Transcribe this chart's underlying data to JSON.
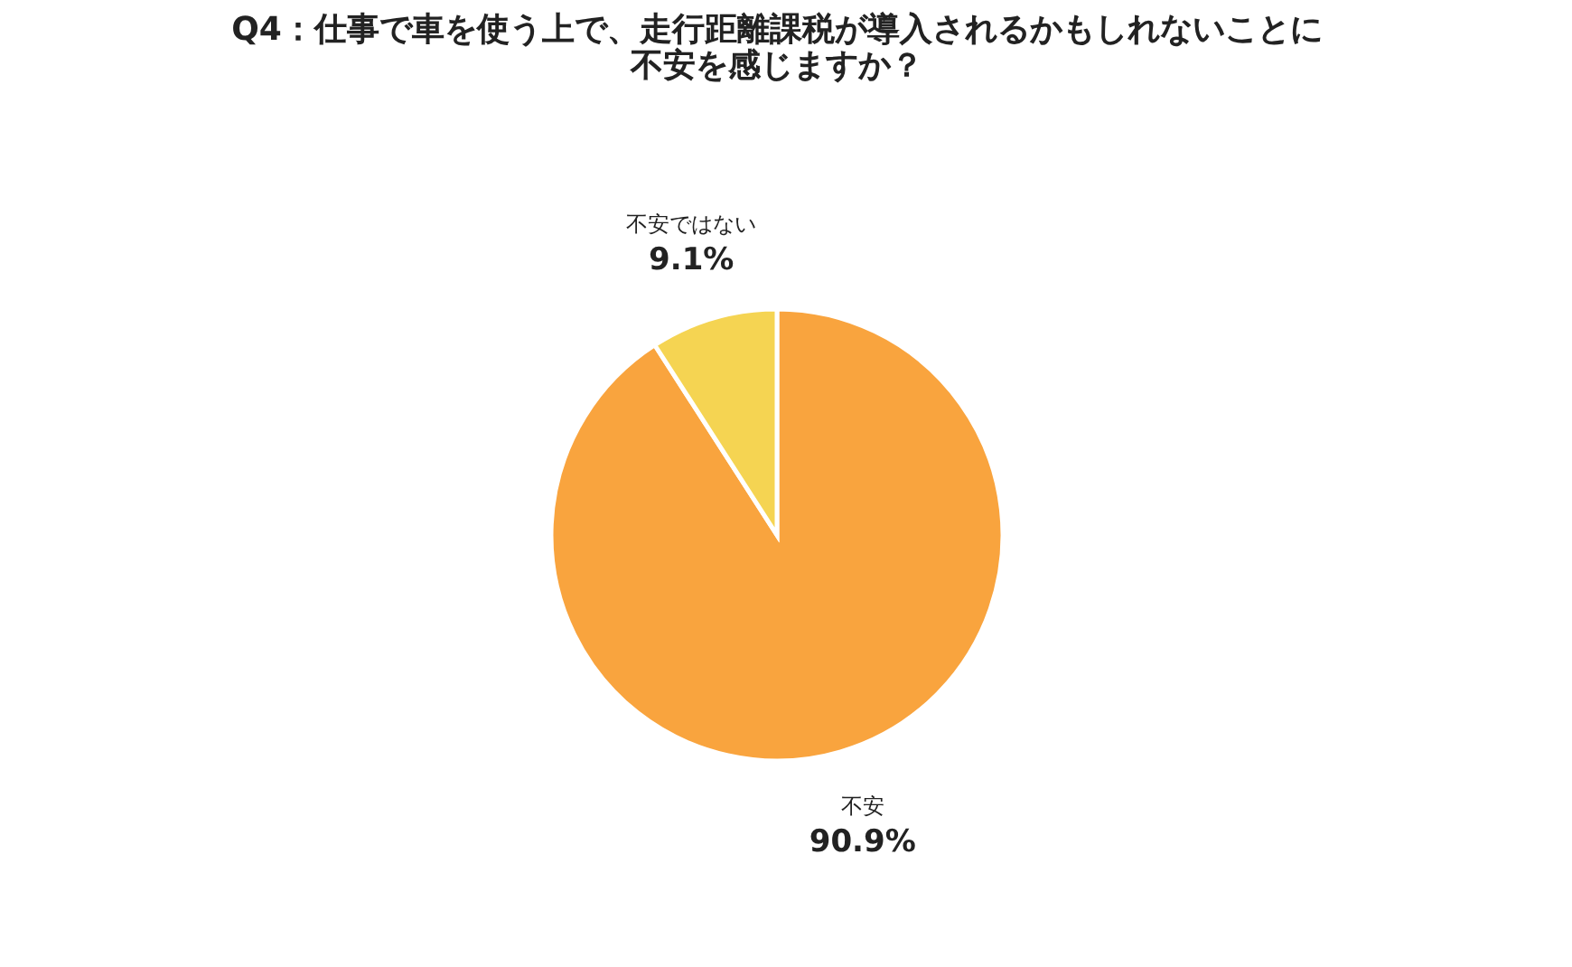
{
  "chart_data": {
    "type": "pie",
    "title": [
      "Q4：仕事で車を使う上で、走行距離課税が導入されるかもしれないことに",
      "不安を感じますか？"
    ],
    "categories": [
      "不安",
      "不安ではない"
    ],
    "values": [
      90.9,
      9.1
    ],
    "colors": [
      "#f9a43e",
      "#f5d452"
    ],
    "value_labels": [
      "90.9%",
      "9.1%"
    ],
    "legend": false
  }
}
